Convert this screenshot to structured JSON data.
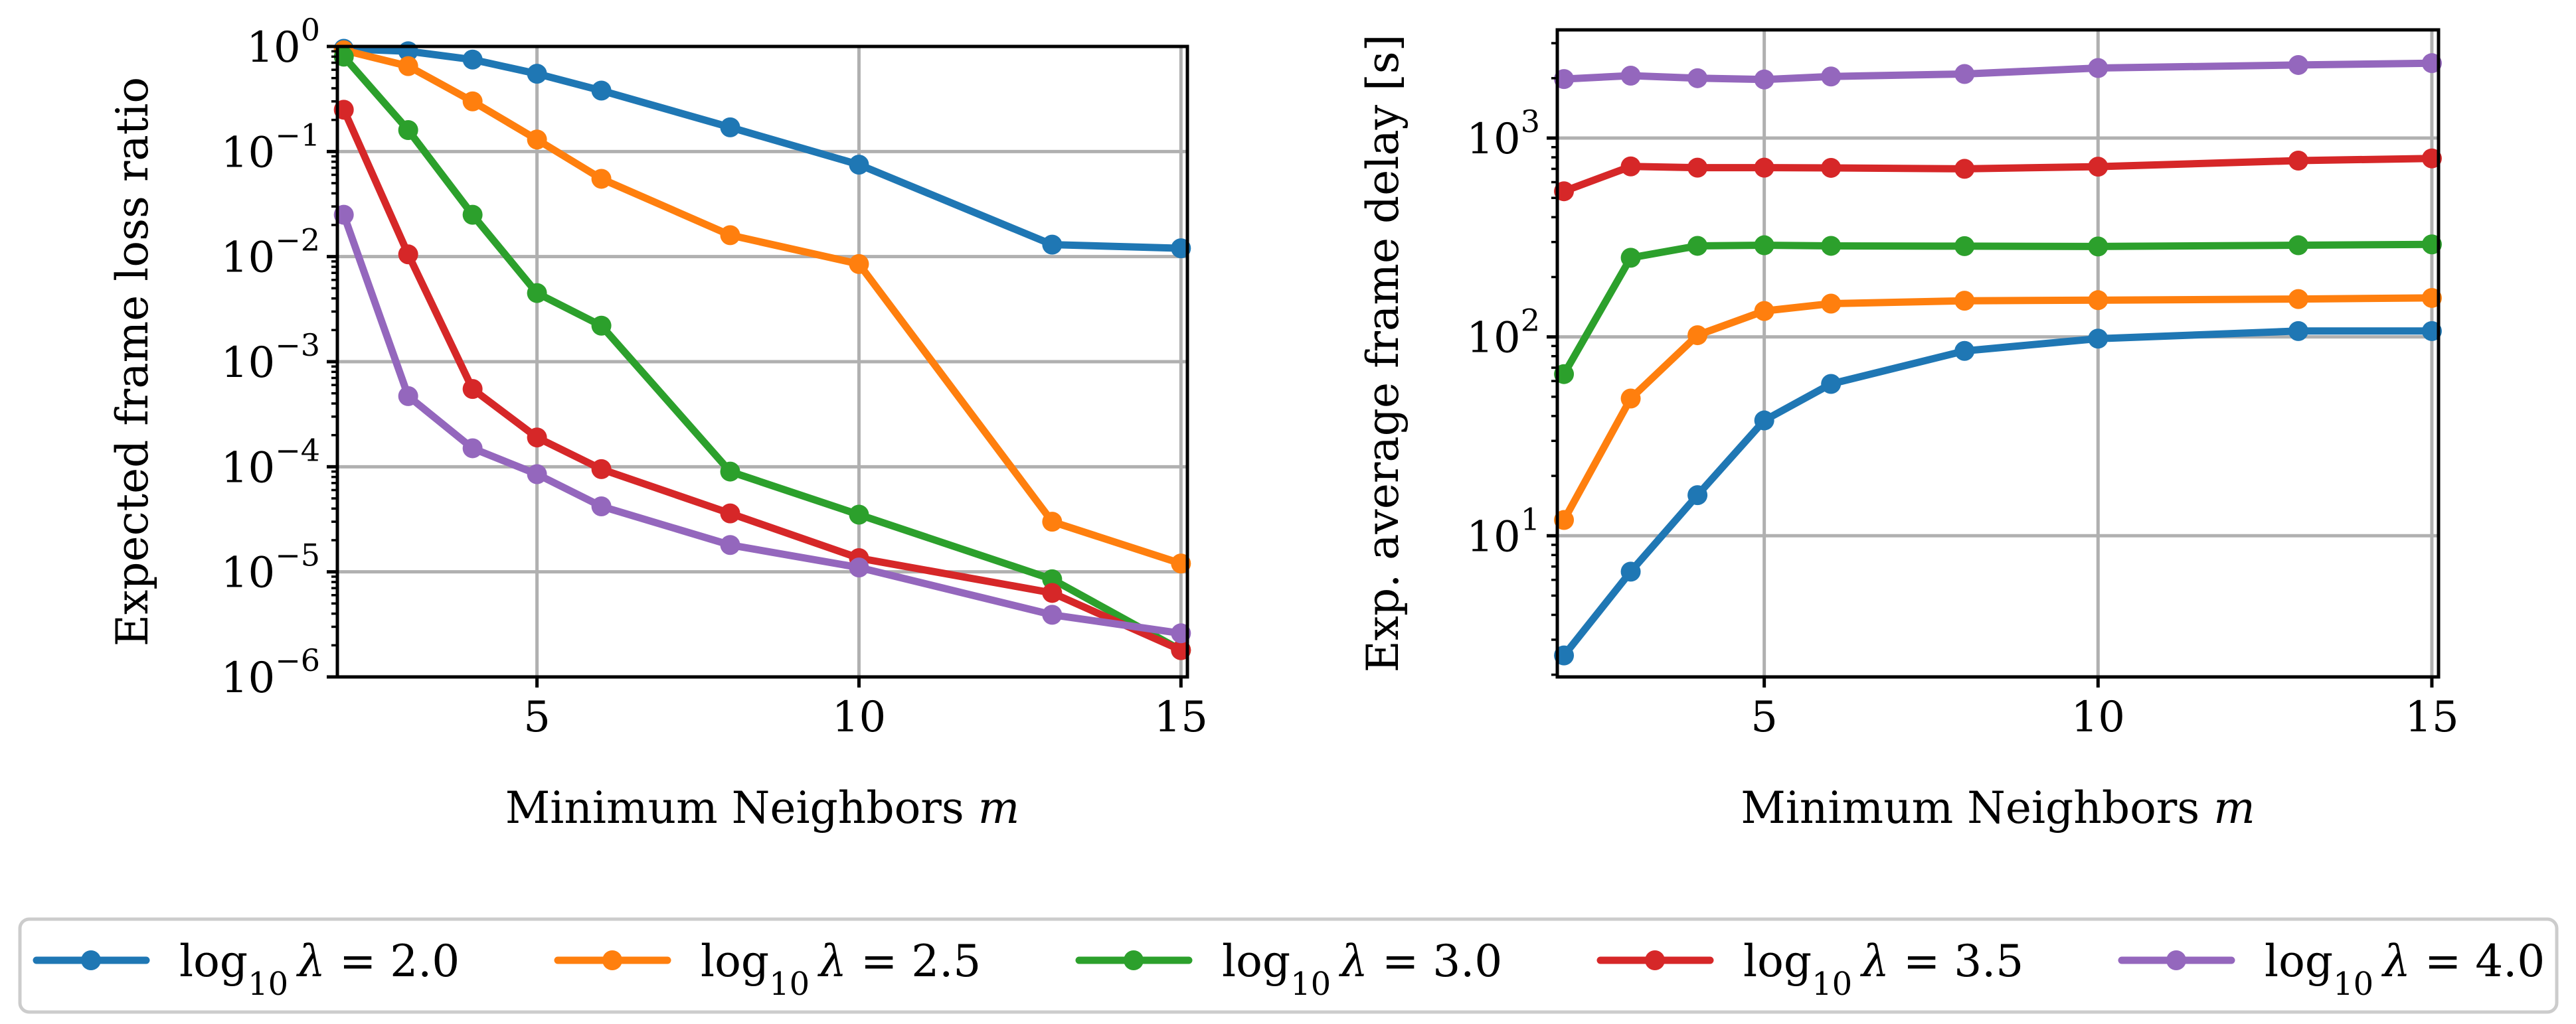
{
  "chart_data": [
    {
      "type": "line",
      "xlabel": "Minimum Neighbors m",
      "ylabel": "Expected frame loss ratio",
      "yscale": "log",
      "xlim": [
        1.9,
        15.1
      ],
      "ylim": [
        1e-06,
        1
      ],
      "xticks": [
        5,
        10,
        15
      ],
      "yticks": [
        1,
        0.1,
        0.01,
        0.001,
        0.0001,
        1e-05,
        1e-06
      ],
      "ytick_labels": [
        "10^0",
        "10^−1",
        "10^−2",
        "10^−3",
        "10^−4",
        "10^−5",
        "10^−6"
      ],
      "grid": true,
      "x": [
        2,
        3,
        4,
        5,
        6,
        8,
        10,
        13,
        15
      ],
      "series": [
        {
          "name": "log10 λ = 2.0",
          "color": "#1f77b4",
          "values": [
            0.95,
            0.9,
            0.75,
            0.55,
            0.38,
            0.17,
            0.075,
            0.013,
            0.012
          ]
        },
        {
          "name": "log10 λ = 2.5",
          "color": "#ff7f0e",
          "values": [
            0.92,
            0.65,
            0.3,
            0.13,
            0.055,
            0.016,
            0.0085,
            3e-05,
            1.2e-05
          ]
        },
        {
          "name": "log10 λ = 3.0",
          "color": "#2ca02c",
          "values": [
            0.8,
            0.16,
            0.025,
            0.0045,
            0.0022,
            9e-05,
            3.5e-05,
            8.5e-06,
            1.8e-06
          ]
        },
        {
          "name": "log10 λ = 3.5",
          "color": "#d62728",
          "values": [
            0.25,
            0.0105,
            0.00055,
            0.00019,
            9.5e-05,
            3.6e-05,
            1.35e-05,
            6.3e-06,
            1.8e-06
          ]
        },
        {
          "name": "log10 λ = 4.0",
          "color": "#9467bd",
          "values": [
            0.025,
            0.00047,
            0.00015,
            8.5e-05,
            4.2e-05,
            1.8e-05,
            1.1e-05,
            3.9e-06,
            2.6e-06
          ]
        }
      ]
    },
    {
      "type": "line",
      "xlabel": "Minimum Neighbors m",
      "ylabel": "Exp. average frame delay [s]",
      "yscale": "log",
      "xlim": [
        1.9,
        15.1
      ],
      "ylim": [
        1.95,
        3500
      ],
      "xticks": [
        5,
        10,
        15
      ],
      "yticks": [
        10,
        100,
        1000
      ],
      "ytick_labels": [
        "10^1",
        "10^2",
        "10^3"
      ],
      "grid": true,
      "x": [
        2,
        3,
        4,
        5,
        6,
        8,
        10,
        13,
        15
      ],
      "series": [
        {
          "name": "log10 λ = 2.0",
          "color": "#1f77b4",
          "values": [
            2.5,
            6.6,
            16,
            38,
            58,
            85,
            98,
            107,
            107
          ]
        },
        {
          "name": "log10 λ = 2.5",
          "color": "#ff7f0e",
          "values": [
            12,
            49,
            102,
            135,
            147,
            152,
            153,
            155,
            157
          ]
        },
        {
          "name": "log10 λ = 3.0",
          "color": "#2ca02c",
          "values": [
            65,
            250,
            287,
            289,
            287,
            286,
            285,
            289,
            292
          ]
        },
        {
          "name": "log10 λ = 3.5",
          "color": "#d62728",
          "values": [
            540,
            720,
            710,
            710,
            708,
            700,
            718,
            770,
            790
          ]
        },
        {
          "name": "log10 λ = 4.0",
          "color": "#9467bd",
          "values": [
            1980,
            2060,
            2000,
            1970,
            2040,
            2100,
            2250,
            2330,
            2380
          ]
        }
      ]
    }
  ],
  "legend": {
    "position": "bottom-center",
    "entries": [
      {
        "prefix": "log",
        "sub": "10",
        "suffix": "λ = 2.0",
        "color": "#1f77b4"
      },
      {
        "prefix": "log",
        "sub": "10",
        "suffix": "λ = 2.5",
        "color": "#ff7f0e"
      },
      {
        "prefix": "log",
        "sub": "10",
        "suffix": "λ = 3.0",
        "color": "#2ca02c"
      },
      {
        "prefix": "log",
        "sub": "10",
        "suffix": "λ = 3.5",
        "color": "#d62728"
      },
      {
        "prefix": "log",
        "sub": "10",
        "suffix": "λ = 4.0",
        "color": "#9467bd"
      }
    ]
  }
}
